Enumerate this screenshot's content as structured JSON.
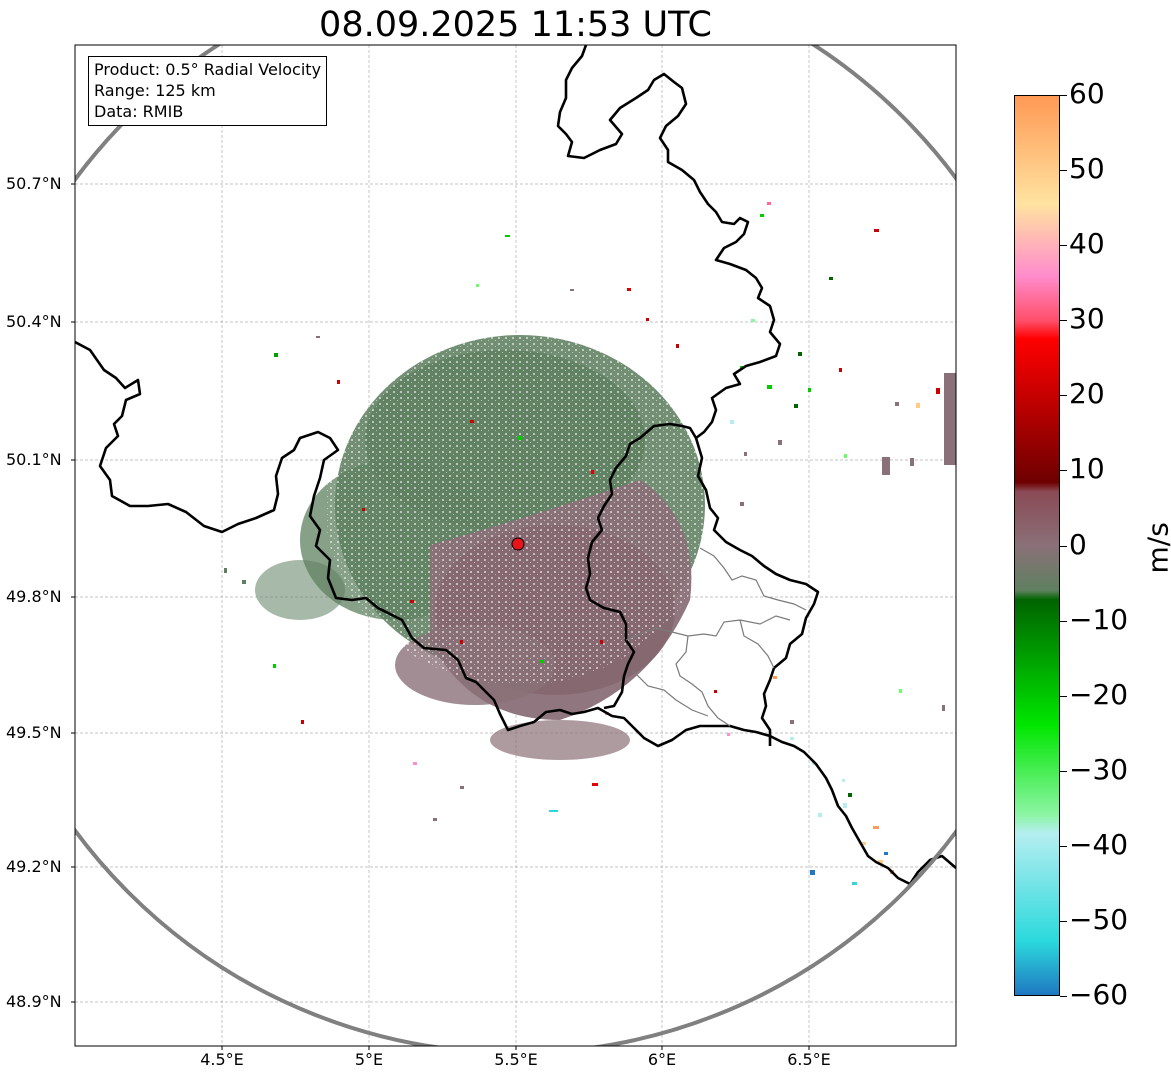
{
  "title": "08.09.2025 11:53 UTC",
  "info": {
    "product": "Product: 0.5° Radial Velocity",
    "range": "Range: 125 km",
    "data": "Data: RMIB"
  },
  "lat_ticks": [
    "50.7°N",
    "50.4°N",
    "50.1°N",
    "49.8°N",
    "49.5°N",
    "49.2°N",
    "48.9°N"
  ],
  "lon_ticks": [
    "4.5°E",
    "5°E",
    "5.5°E",
    "6°E",
    "6.5°E"
  ],
  "colorbar": {
    "ticks": [
      "60",
      "50",
      "40",
      "30",
      "20",
      "10",
      "0",
      "−10",
      "−20",
      "−30",
      "−40",
      "−50",
      "−60"
    ],
    "unit": "m/s",
    "min": -60,
    "max": 60,
    "colors": {
      "dark_blue": "#1f78c1",
      "cyan": "#2bd9dd",
      "light_cyan": "#b5eef0",
      "light_green": "#8df5a5",
      "bright_green": "#00e600",
      "dark_green": "#006400",
      "gray_green": "#5f8060",
      "gray_mauve": "#8a7078",
      "dark_red": "#6e0000",
      "red": "#ff0000",
      "pink": "#ff8ccc",
      "peach": "#ffe3a0",
      "orange": "#ff9955"
    }
  },
  "radar_site_color": "#e8141a"
}
